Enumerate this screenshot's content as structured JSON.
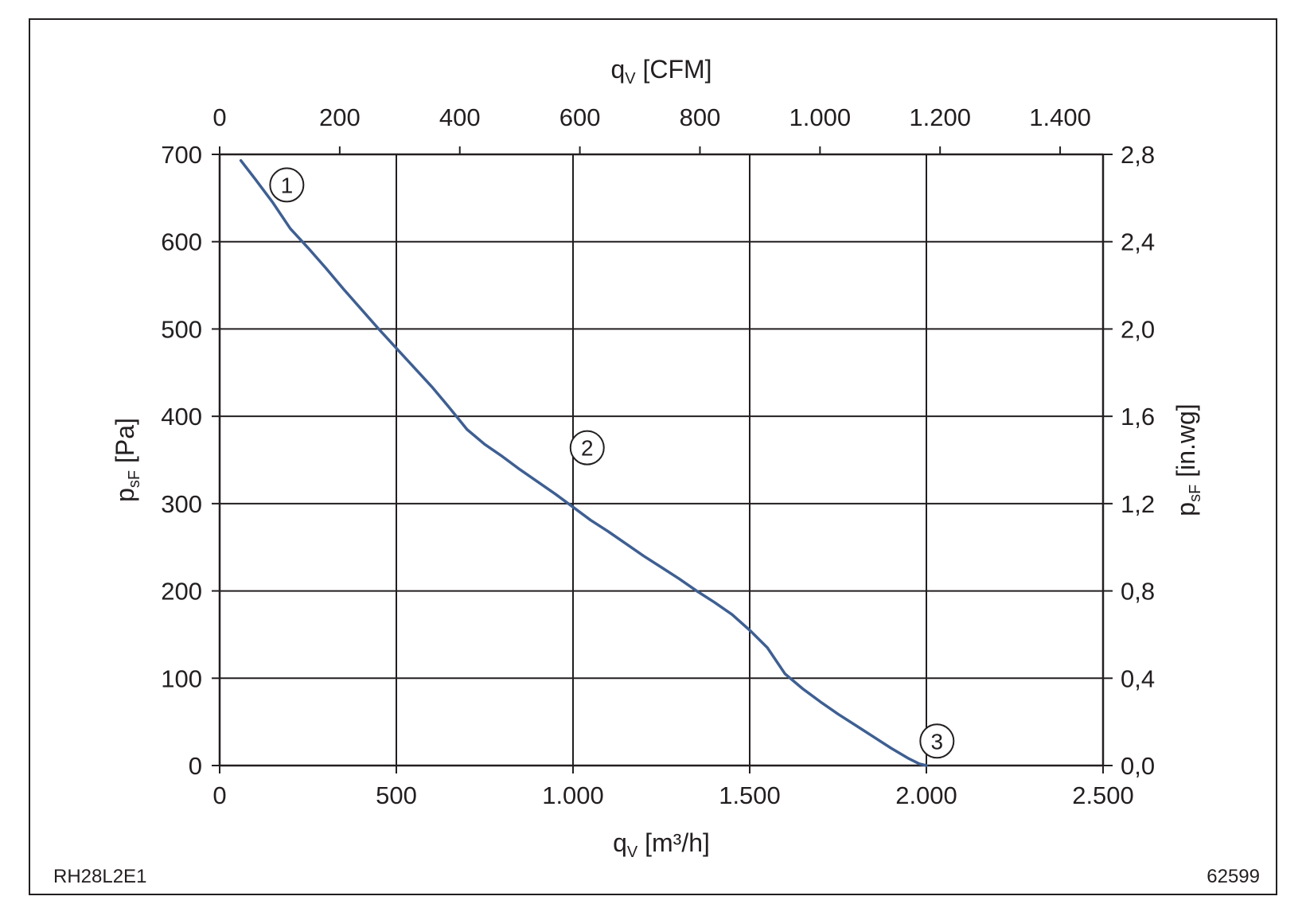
{
  "chart_data": {
    "type": "line",
    "title": "",
    "xlabel": {
      "main": "q",
      "sub": "V",
      "unit": " [m³/h]"
    },
    "x2label": {
      "main": "q",
      "sub": "V",
      "unit": " [CFM]"
    },
    "ylabel": {
      "main": "p",
      "sub": "sF",
      "unit": " [Pa]"
    },
    "y2label": {
      "main": "p",
      "sub": "sF",
      "unit": " [in.wg]"
    },
    "xlim": [
      0,
      2500
    ],
    "ylim": [
      0,
      700
    ],
    "x2lim": [
      0,
      1471.5
    ],
    "y2lim": [
      0,
      2.8
    ],
    "x_ticks": [
      "0",
      "500",
      "1.000",
      "1.500",
      "2.000",
      "2.500"
    ],
    "x2_ticks": [
      "0",
      "200",
      "400",
      "600",
      "800",
      "1.000",
      "1.200",
      "1.400"
    ],
    "y_ticks": [
      "0",
      "100",
      "200",
      "300",
      "400",
      "500",
      "600",
      "700"
    ],
    "y2_ticks": [
      "0,0",
      "0,4",
      "0,8",
      "1,2",
      "1,6",
      "2,0",
      "2,4",
      "2,8"
    ],
    "grid": true,
    "series": [
      {
        "color": "#3e5f92",
        "x": [
          60,
          100,
          150,
          200,
          250,
          300,
          350,
          400,
          450,
          500,
          550,
          600,
          650,
          700,
          750,
          800,
          850,
          900,
          950,
          1000,
          1050,
          1100,
          1150,
          1200,
          1250,
          1300,
          1350,
          1400,
          1450,
          1500,
          1550,
          1600,
          1650,
          1700,
          1750,
          1800,
          1850,
          1900,
          1950,
          1980,
          2000
        ],
        "y": [
          693,
          672,
          645,
          615,
          593,
          570,
          546,
          523,
          500,
          478,
          456,
          434,
          410,
          385,
          368,
          354,
          339,
          325,
          311,
          296,
          281,
          268,
          254,
          240,
          227,
          214,
          200,
          187,
          173,
          155,
          135,
          105,
          88,
          73,
          59,
          46,
          33,
          20,
          8,
          2,
          0
        ]
      }
    ],
    "annotations": [
      {
        "label": "1",
        "x": 190,
        "y": 665
      },
      {
        "label": "2",
        "x": 1040,
        "y": 364
      },
      {
        "label": "3",
        "x": 2030,
        "y": 28
      }
    ],
    "footer_left": "RH28L2E1",
    "footer_right": "62599"
  }
}
